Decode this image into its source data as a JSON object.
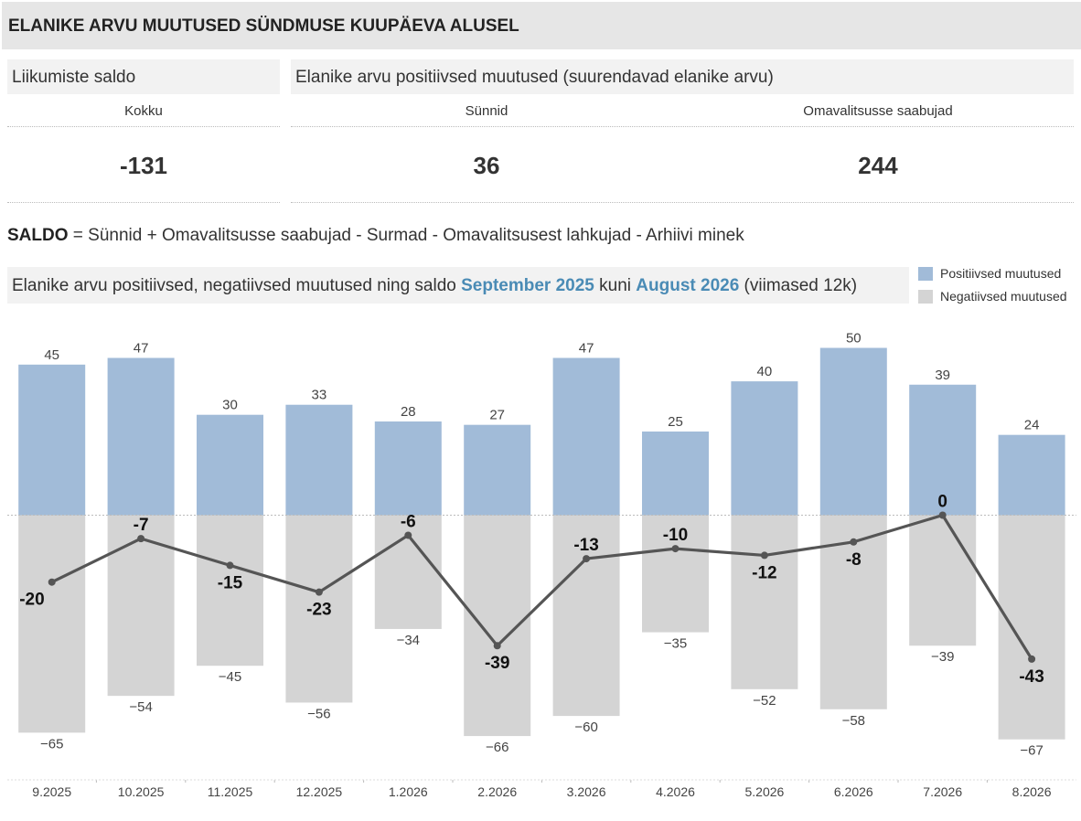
{
  "header": {
    "title": "ELANIKE ARVU MUUTUSED SÜNDMUSE KUUPÄEVA ALUSEL"
  },
  "sections": {
    "saldo_title": "Liikumiste saldo",
    "positive_title": "Elanike arvu positiivsed muutused (suurendavad elanike arvu)"
  },
  "kpis": {
    "total_label": "Kokku",
    "total_value": "-131",
    "births_label": "Sünnid",
    "births_value": "36",
    "arrivals_label": "Omavalitsusse saabujad",
    "arrivals_value": "244"
  },
  "formula": {
    "term": "SALDO",
    "text": " = Sünnid + Omavalitsusse saabujad - Surmad - Omavalitsusest lahkujad - Arhiivi minek"
  },
  "chart_header": {
    "prefix": "Elanike arvu positiivsed, negatiivsed muutused ning saldo ",
    "from": "September 2025",
    "middle": " kuni ",
    "to": "August 2026",
    "suffix": " (viimased 12k)"
  },
  "legend": [
    {
      "label": "Positiivsed muutused",
      "color": "#a1bbd8"
    },
    {
      "label": "Negatiivsed muutused",
      "color": "#d4d4d4"
    }
  ],
  "chart_data": {
    "type": "bar",
    "categories": [
      "9.2025",
      "10.2025",
      "11.2025",
      "12.2025",
      "1.2026",
      "2.2026",
      "3.2026",
      "4.2026",
      "5.2026",
      "6.2026",
      "7.2026",
      "8.2026"
    ],
    "series": [
      {
        "name": "Positiivsed muutused",
        "type": "bar",
        "values": [
          45,
          47,
          30,
          33,
          28,
          27,
          47,
          25,
          40,
          50,
          39,
          24
        ],
        "labels": [
          "45",
          "47",
          "30",
          "33",
          "28",
          "27",
          "47",
          "25",
          "40",
          "50",
          "39",
          "24"
        ]
      },
      {
        "name": "Negatiivsed muutused",
        "type": "bar",
        "values": [
          -65,
          -54,
          -45,
          -56,
          -34,
          -66,
          -60,
          -35,
          -52,
          -58,
          -39,
          -67
        ],
        "labels": [
          "−65",
          "−54",
          "−45",
          "−56",
          "−34",
          "−66",
          "−60",
          "−35",
          "−52",
          "−58",
          "−39",
          "−67"
        ]
      },
      {
        "type": "line",
        "values": [
          -20,
          -7,
          -15,
          -23,
          -6,
          -39,
          -13,
          -10,
          -12,
          -8,
          0,
          -43
        ],
        "labels": [
          "-20",
          "-7",
          "-15",
          "-23",
          "-6",
          "-39",
          "-13",
          "-10",
          "-12",
          "-8",
          "0",
          "-43"
        ]
      }
    ],
    "label_sides": [
      "left",
      "above",
      "below",
      "below",
      "above",
      "below",
      "above",
      "above",
      "below",
      "below",
      "above",
      "below"
    ],
    "ylim": [
      -67,
      50
    ],
    "colors": {
      "positive": "#a1bbd8",
      "negative": "#d4d4d4",
      "line": "#555555"
    },
    "grid": false
  }
}
